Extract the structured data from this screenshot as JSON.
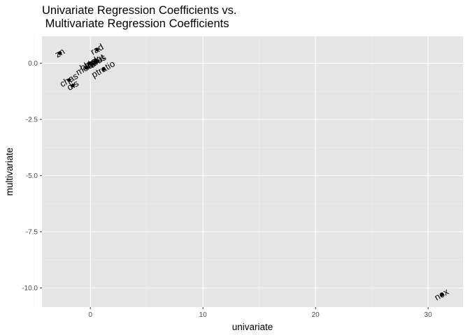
{
  "chart_data": {
    "type": "scatter",
    "title": "Univariate Regression Coefficients vs.\n Multivariate Regression Coefficients",
    "xlabel": "univariate",
    "ylabel": "multivariate",
    "xlim": [
      -4.3,
      33.1
    ],
    "ylim": [
      -10.85,
      1.2
    ],
    "x_ticks": [
      0,
      10,
      20,
      30
    ],
    "y_ticks": [
      0.0,
      -2.5,
      -5.0,
      -7.5,
      -10.0
    ],
    "x_tick_labels": [
      "0",
      "10",
      "20",
      "30"
    ],
    "y_tick_labels": [
      "0.0",
      "-2.5",
      "-5.0",
      "-7.5",
      "-10.0"
    ],
    "grid": true,
    "background": "#e5e5e5",
    "text_angle_deg": 30,
    "points": [
      {
        "label": "zn",
        "x": -2.7,
        "y": 0.45
      },
      {
        "label": "rad",
        "x": 0.6,
        "y": 0.61
      },
      {
        "label": "indus",
        "x": 0.5,
        "y": 0.05
      },
      {
        "label": "age",
        "x": 0.1,
        "y": 0.0
      },
      {
        "label": "tax",
        "x": 0.03,
        "y": -0.004
      },
      {
        "label": "black",
        "x": -0.04,
        "y": -0.008
      },
      {
        "label": "lstat",
        "x": 0.55,
        "y": 0.12
      },
      {
        "label": "medv",
        "x": -0.36,
        "y": -0.2
      },
      {
        "label": "ptratio",
        "x": 1.15,
        "y": -0.27
      },
      {
        "label": "chas",
        "x": -1.9,
        "y": -0.75
      },
      {
        "label": "dis",
        "x": -1.55,
        "y": -0.99
      },
      {
        "label": "nox",
        "x": 31.2,
        "y": -10.3
      }
    ]
  }
}
